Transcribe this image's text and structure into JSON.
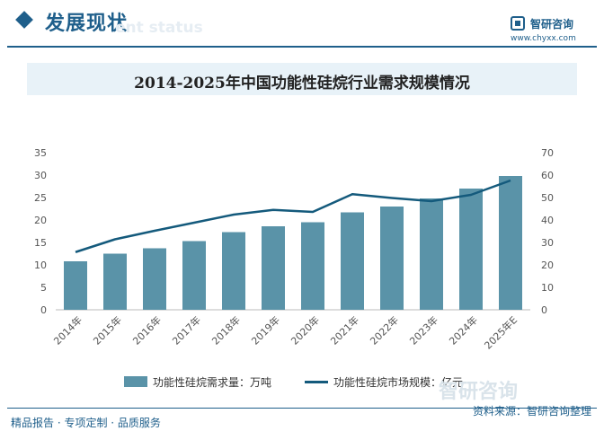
{
  "header": {
    "title": "发展现状",
    "subtitle": "ent status",
    "logo_name": "智研咨询",
    "logo_url": "www.chyxx.com",
    "watermark": "智研咨询"
  },
  "footer": {
    "left": "精品报告 · 专项定制 · 品质服务",
    "source": "资料来源：智研咨询整理"
  },
  "colors": {
    "bar": "#5a93a8",
    "line": "#145a7c",
    "accent": "#1f5f8b"
  },
  "chart_data": {
    "type": "bar",
    "title": "2014-2025年中国功能性硅烷行业需求规模情况",
    "categories": [
      "2014年",
      "2015年",
      "2016年",
      "2017年",
      "2018年",
      "2019年",
      "2020年",
      "2021年",
      "2022年",
      "2023年",
      "2024年",
      "2025年E"
    ],
    "y_left": {
      "ylim": [
        0,
        35
      ],
      "ticks": [
        0,
        5,
        10,
        15,
        20,
        25,
        30,
        35
      ]
    },
    "y_right": {
      "ylim": [
        0,
        70
      ],
      "ticks": [
        0,
        10,
        20,
        30,
        40,
        50,
        60,
        70
      ]
    },
    "grid": false,
    "legend_position": "bottom",
    "series": [
      {
        "name": "功能性硅烷需求量：万吨",
        "type": "bar",
        "axis": "left",
        "values": [
          10.8,
          12.5,
          13.7,
          15.3,
          17.3,
          18.6,
          19.5,
          21.7,
          23.0,
          24.8,
          27.0,
          29.8
        ]
      },
      {
        "name": "功能性硅烷市场规模：亿元",
        "type": "line",
        "axis": "right",
        "values": [
          25.7,
          31.4,
          35.2,
          38.8,
          42.4,
          44.5,
          43.6,
          51.5,
          49.8,
          48.4,
          51.2,
          57.6
        ]
      }
    ]
  }
}
